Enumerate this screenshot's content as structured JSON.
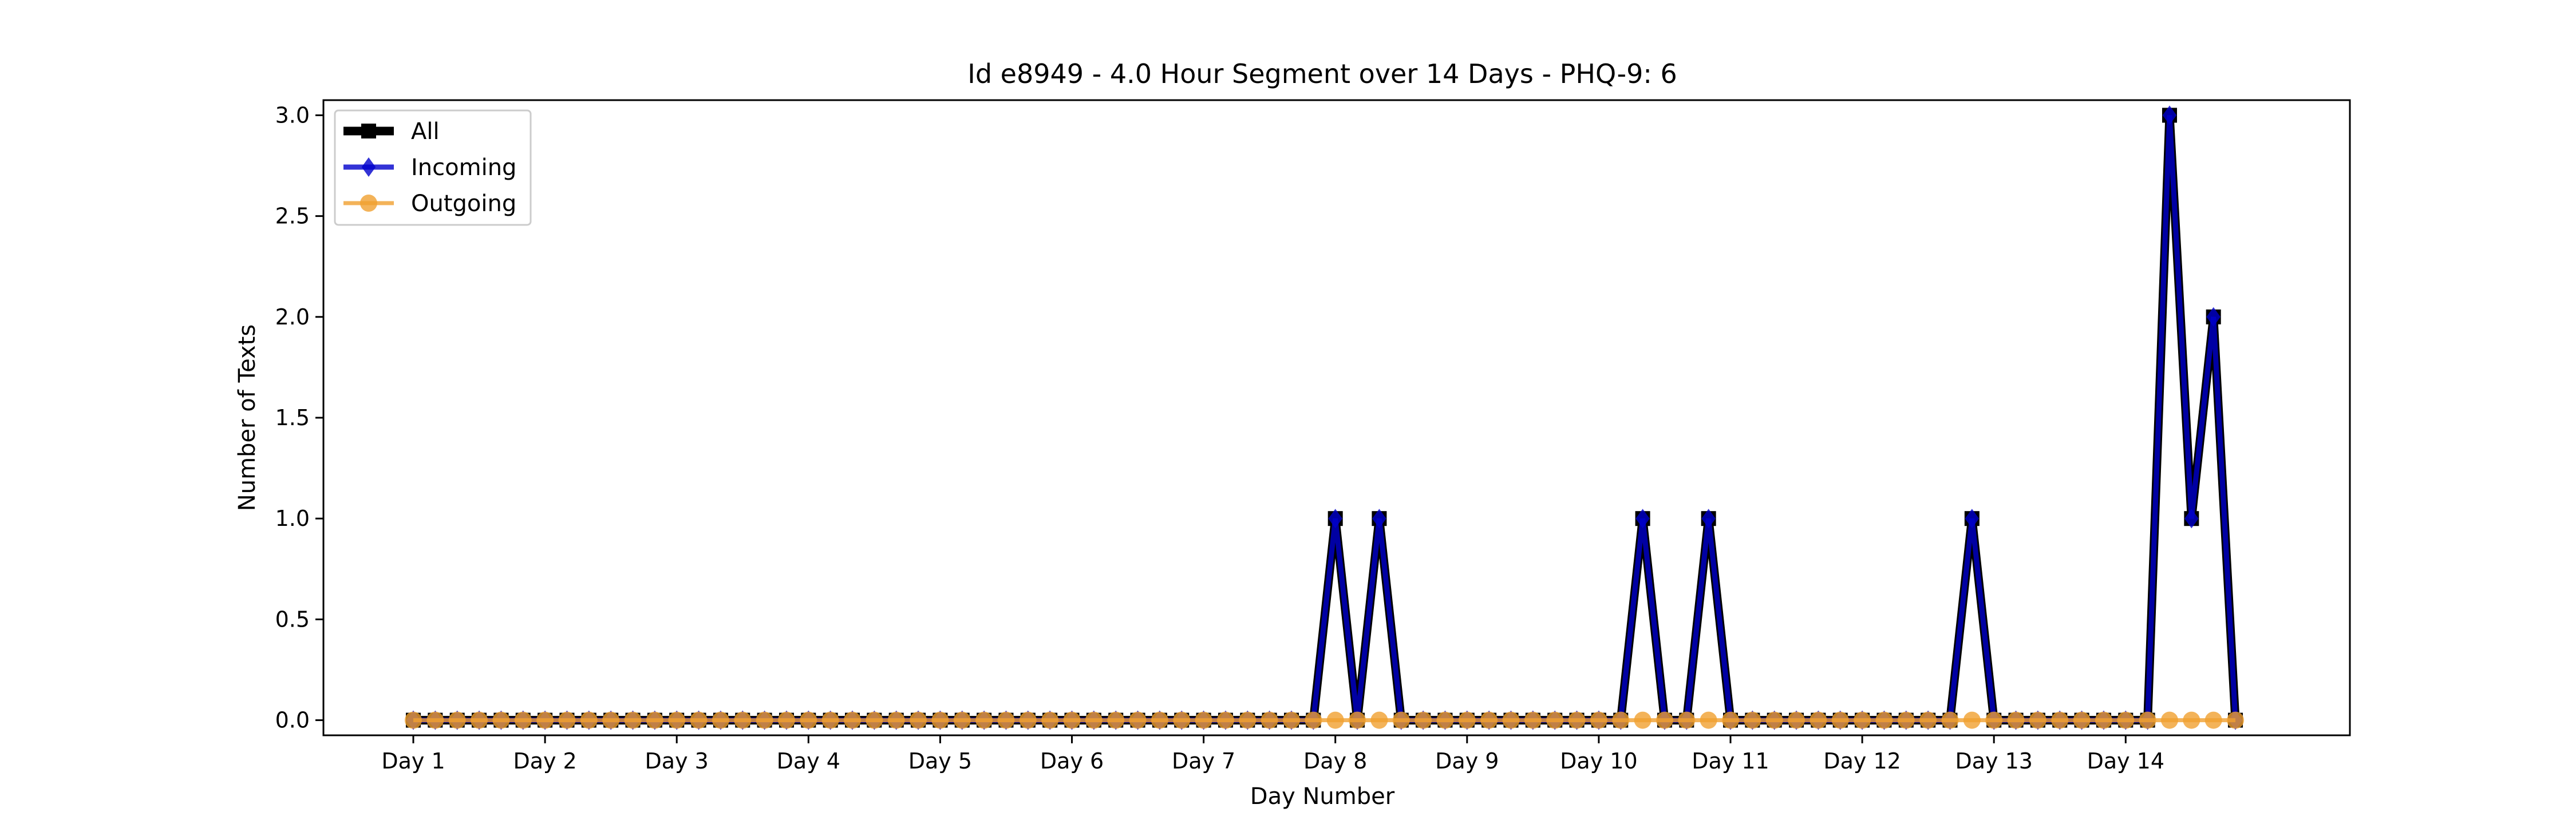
{
  "chart_data": {
    "type": "line",
    "title": "Id e8949 - 4.0 Hour Segment over 14 Days - PHQ-9: 6",
    "xlabel": "Day Number",
    "ylabel": "Number of Texts",
    "ylim": [
      -0.075,
      3.075
    ],
    "y_ticks": [
      0.0,
      0.5,
      1.0,
      1.5,
      2.0,
      2.5,
      3.0
    ],
    "y_tick_labels": [
      "0.0",
      "0.5",
      "1.0",
      "1.5",
      "2.0",
      "2.5",
      "3.0"
    ],
    "x_tick_labels": [
      "Day 1",
      "Day 2",
      "Day 3",
      "Day 4",
      "Day 5",
      "Day 6",
      "Day 7",
      "Day 8",
      "Day 9",
      "Day 10",
      "Day 11",
      "Day 12",
      "Day 13",
      "Day 14"
    ],
    "x_tick_positions": [
      0,
      6,
      12,
      18,
      24,
      30,
      36,
      42,
      48,
      54,
      60,
      66,
      72,
      78
    ],
    "grid": false,
    "legend_position": "upper-left",
    "series": [
      {
        "name": "All",
        "color": "#000000",
        "marker": "square",
        "values": [
          0,
          0,
          0,
          0,
          0,
          0,
          0,
          0,
          0,
          0,
          0,
          0,
          0,
          0,
          0,
          0,
          0,
          0,
          0,
          0,
          0,
          0,
          0,
          0,
          0,
          0,
          0,
          0,
          0,
          0,
          0,
          0,
          0,
          0,
          0,
          0,
          0,
          0,
          0,
          0,
          0,
          0,
          1,
          0,
          1,
          0,
          0,
          0,
          0,
          0,
          0,
          0,
          0,
          0,
          0,
          0,
          1,
          0,
          0,
          1,
          0,
          0,
          0,
          0,
          0,
          0,
          0,
          0,
          0,
          0,
          0,
          1,
          0,
          0,
          0,
          0,
          0,
          0,
          0,
          0,
          3,
          1,
          2,
          0
        ]
      },
      {
        "name": "Incoming",
        "color": "#0000cc",
        "marker": "diamond",
        "values": [
          0,
          0,
          0,
          0,
          0,
          0,
          0,
          0,
          0,
          0,
          0,
          0,
          0,
          0,
          0,
          0,
          0,
          0,
          0,
          0,
          0,
          0,
          0,
          0,
          0,
          0,
          0,
          0,
          0,
          0,
          0,
          0,
          0,
          0,
          0,
          0,
          0,
          0,
          0,
          0,
          0,
          0,
          1,
          0,
          1,
          0,
          0,
          0,
          0,
          0,
          0,
          0,
          0,
          0,
          0,
          0,
          1,
          0,
          0,
          1,
          0,
          0,
          0,
          0,
          0,
          0,
          0,
          0,
          0,
          0,
          0,
          1,
          0,
          0,
          0,
          0,
          0,
          0,
          0,
          0,
          3,
          1,
          2,
          0
        ]
      },
      {
        "name": "Outgoing",
        "color": "#f0a030",
        "marker": "circle",
        "values": [
          0,
          0,
          0,
          0,
          0,
          0,
          0,
          0,
          0,
          0,
          0,
          0,
          0,
          0,
          0,
          0,
          0,
          0,
          0,
          0,
          0,
          0,
          0,
          0,
          0,
          0,
          0,
          0,
          0,
          0,
          0,
          0,
          0,
          0,
          0,
          0,
          0,
          0,
          0,
          0,
          0,
          0,
          0,
          0,
          0,
          0,
          0,
          0,
          0,
          0,
          0,
          0,
          0,
          0,
          0,
          0,
          0,
          0,
          0,
          0,
          0,
          0,
          0,
          0,
          0,
          0,
          0,
          0,
          0,
          0,
          0,
          0,
          0,
          0,
          0,
          0,
          0,
          0,
          0,
          0,
          0,
          0,
          0,
          0
        ]
      }
    ]
  }
}
